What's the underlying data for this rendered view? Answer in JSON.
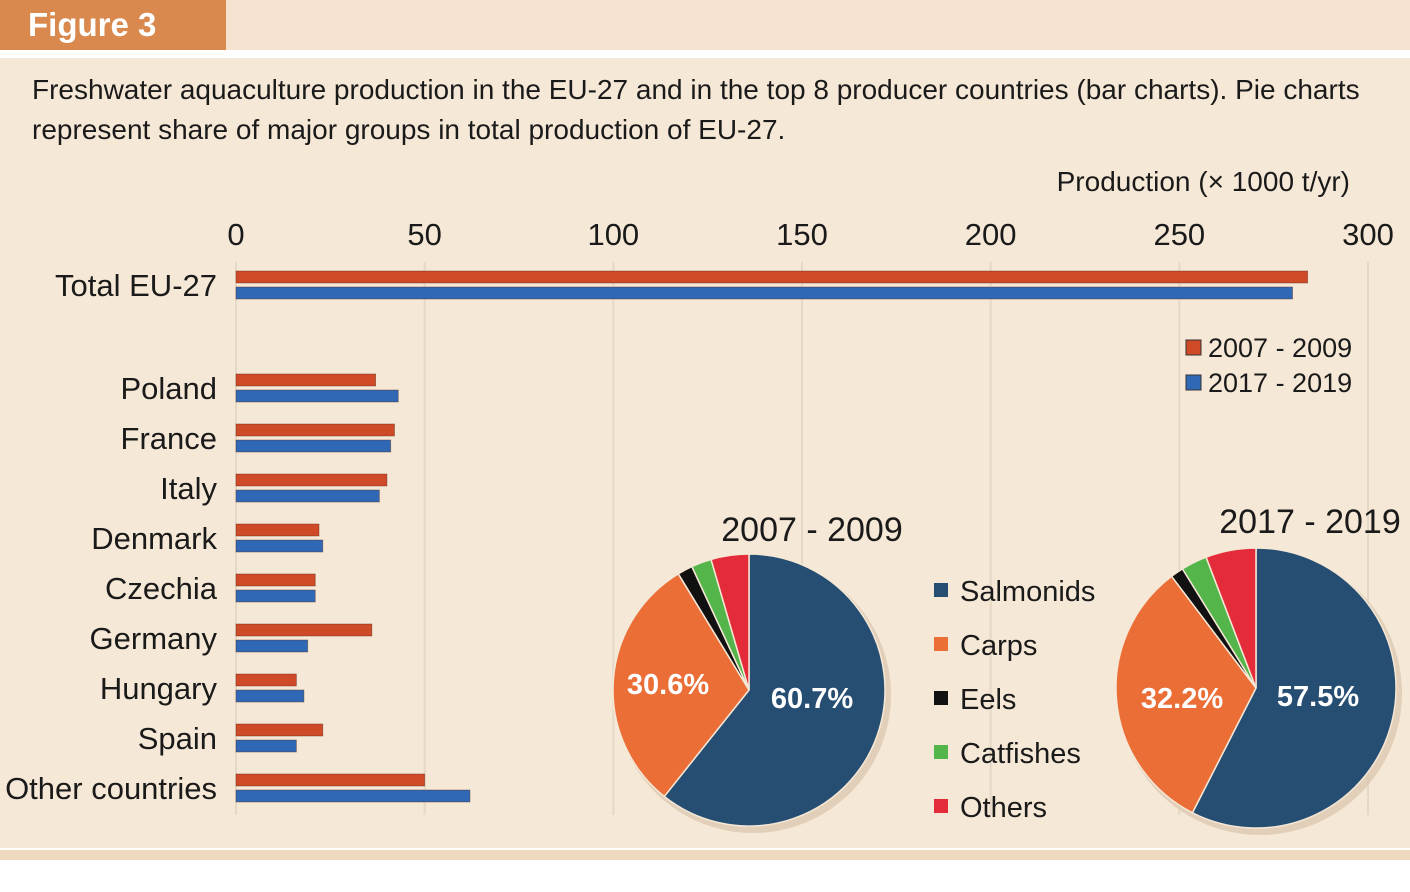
{
  "figure": {
    "label": "Figure 3",
    "caption": "Freshwater aquaculture production in the EU-27 and in the top 8 producer countries (bar charts). Pie charts represent share of major groups in total production of EU-27."
  },
  "colors": {
    "series_2007": "#cf4a27",
    "series_2017": "#2f68b4",
    "salmonids": "#264d72",
    "carps": "#ea6e36",
    "eels": "#111111",
    "catfishes": "#53b54a",
    "others": "#e42b39",
    "grid": "#e6d8c6",
    "axis_text": "#1a1a1a"
  },
  "chart_data": [
    {
      "type": "bar",
      "orientation": "horizontal",
      "title": "",
      "xlabel": "Production (× 1000 t/yr)",
      "ylabel": "",
      "xlim": [
        0,
        300
      ],
      "x_ticks": [
        0,
        50,
        100,
        150,
        200,
        250,
        300
      ],
      "grid": true,
      "legend_position": "right",
      "categories": [
        "Total EU-27",
        "Poland",
        "France",
        "Italy",
        "Denmark",
        "Czechia",
        "Germany",
        "Hungary",
        "Spain",
        "Other countries"
      ],
      "series": [
        {
          "name": "2007 - 2009",
          "values": [
            284,
            37,
            42,
            40,
            22,
            21,
            36,
            16,
            23,
            50
          ]
        },
        {
          "name": "2017 - 2019",
          "values": [
            280,
            43,
            41,
            38,
            23,
            21,
            19,
            18,
            16,
            62
          ]
        }
      ]
    },
    {
      "type": "pie",
      "title": "2007 - 2009",
      "labels": [
        "Salmonids",
        "Carps",
        "Eels",
        "Catfishes",
        "Others"
      ],
      "values": [
        60.7,
        30.6,
        1.8,
        2.4,
        4.5
      ],
      "shown_labels": [
        "60.7%",
        "30.6%",
        "",
        "",
        ""
      ]
    },
    {
      "type": "pie",
      "title": "2017 - 2019",
      "labels": [
        "Salmonids",
        "Carps",
        "Eels",
        "Catfishes",
        "Others"
      ],
      "values": [
        57.5,
        32.2,
        1.5,
        3.0,
        5.8
      ],
      "shown_labels": [
        "57.5%",
        "32.2%",
        "",
        "",
        ""
      ]
    }
  ],
  "pie_legend": [
    "Salmonids",
    "Carps",
    "Eels",
    "Catfishes",
    "Others"
  ]
}
